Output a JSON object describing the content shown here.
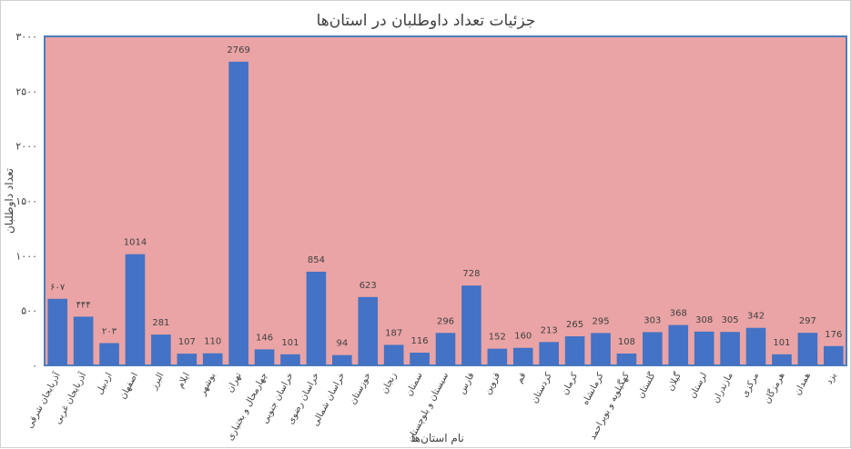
{
  "chart_data": {
    "type": "bar",
    "title": "جزئیات تعداد داوطلبان در استان‌ها",
    "xlabel": "نام استان‌ها",
    "ylabel": "تعداد داوطلبان",
    "ylim": [
      0,
      3000
    ],
    "yticks": [
      0,
      500,
      1000,
      1500,
      2000,
      2500,
      3000
    ],
    "ytick_labels": [
      "۰",
      "۵۰۰",
      "۱۰۰۰",
      "۱۵۰۰",
      "۲۰۰۰",
      "۲۵۰۰",
      "۳۰۰۰"
    ],
    "grid": false,
    "legend": "none",
    "colors": {
      "bar": "#4472c4",
      "plot_bg": "#eaa4a5",
      "plot_border": "#4a7ebb"
    },
    "categories": [
      "آذربایجان شرقی",
      "آذربایجان غربی",
      "اردبیل",
      "اصفهان",
      "البرز",
      "ایلام",
      "بوشهر",
      "تهران",
      "چهارمحال و بختیاری",
      "خراسان جنوبی",
      "خراسان رضوی",
      "خراسان شمالی",
      "خوزستان",
      "زنجان",
      "سمنان",
      "سیستان و بلوچستان",
      "فارس",
      "قزوین",
      "قم",
      "کردستان",
      "کرمان",
      "کرمانشاه",
      "کهگیلویه و بویراحمد",
      "گلستان",
      "گیلان",
      "لرستان",
      "مازندران",
      "مرکزی",
      "هرمزگان",
      "همدان",
      "یزد"
    ],
    "values": [
      607,
      444,
      203,
      1014,
      281,
      107,
      110,
      2769,
      146,
      101,
      854,
      94,
      623,
      187,
      116,
      296,
      728,
      152,
      160,
      213,
      265,
      295,
      108,
      303,
      368,
      308,
      305,
      342,
      101,
      297,
      176
    ],
    "data_labels": [
      "۶۰۷",
      "۴۴۴",
      "۲۰۳",
      "1014",
      "281",
      "107",
      "110",
      "2769",
      "146",
      "101",
      "854",
      "94",
      "623",
      "187",
      "116",
      "296",
      "728",
      "152",
      "160",
      "213",
      "265",
      "295",
      "108",
      "303",
      "368",
      "308",
      "305",
      "342",
      "101",
      "297",
      "176"
    ]
  }
}
